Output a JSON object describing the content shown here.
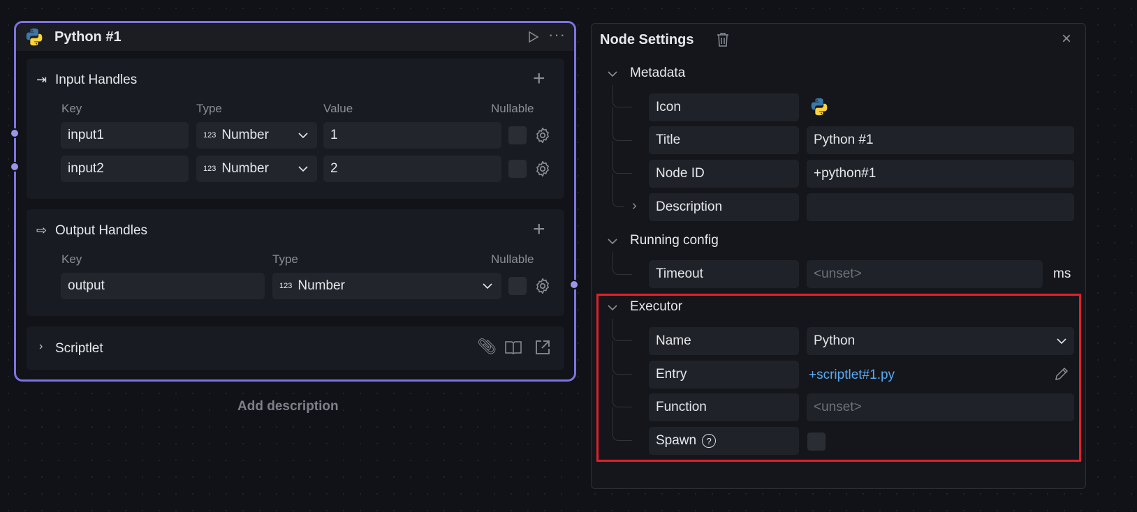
{
  "node": {
    "title": "Python #1",
    "icon": "python-logo-icon",
    "input_handles": {
      "title": "Input Handles",
      "columns": [
        "Key",
        "Type",
        "Value",
        "Nullable"
      ],
      "rows": [
        {
          "key": "input1",
          "type": "Number",
          "value": "1"
        },
        {
          "key": "input2",
          "type": "Number",
          "value": "2"
        }
      ]
    },
    "output_handles": {
      "title": "Output Handles",
      "columns": [
        "Key",
        "Type",
        "Nullable"
      ],
      "rows": [
        {
          "key": "output",
          "type": "Number"
        }
      ]
    },
    "scriptlet": {
      "title": "Scriptlet"
    },
    "type_icon": "123",
    "add_description": "Add description"
  },
  "panel": {
    "title": "Node Settings",
    "metadata": {
      "title": "Metadata",
      "icon_label": "Icon",
      "title_label": "Title",
      "title_value": "Python #1",
      "id_label": "Node ID",
      "id_value": "+python#1",
      "desc_label": "Description",
      "desc_value": ""
    },
    "running": {
      "title": "Running config",
      "timeout_label": "Timeout",
      "timeout_placeholder": "<unset>",
      "timeout_unit": "ms"
    },
    "executor": {
      "title": "Executor",
      "name_label": "Name",
      "name_value": "Python",
      "entry_label": "Entry",
      "entry_value": "+scriptlet#1.py",
      "function_label": "Function",
      "function_placeholder": "<unset>",
      "spawn_label": "Spawn",
      "spawn_checked": false
    }
  },
  "colors": {
    "accent": "#7b74e0",
    "highlight": "#e0202a",
    "link": "#5aa9f0"
  }
}
